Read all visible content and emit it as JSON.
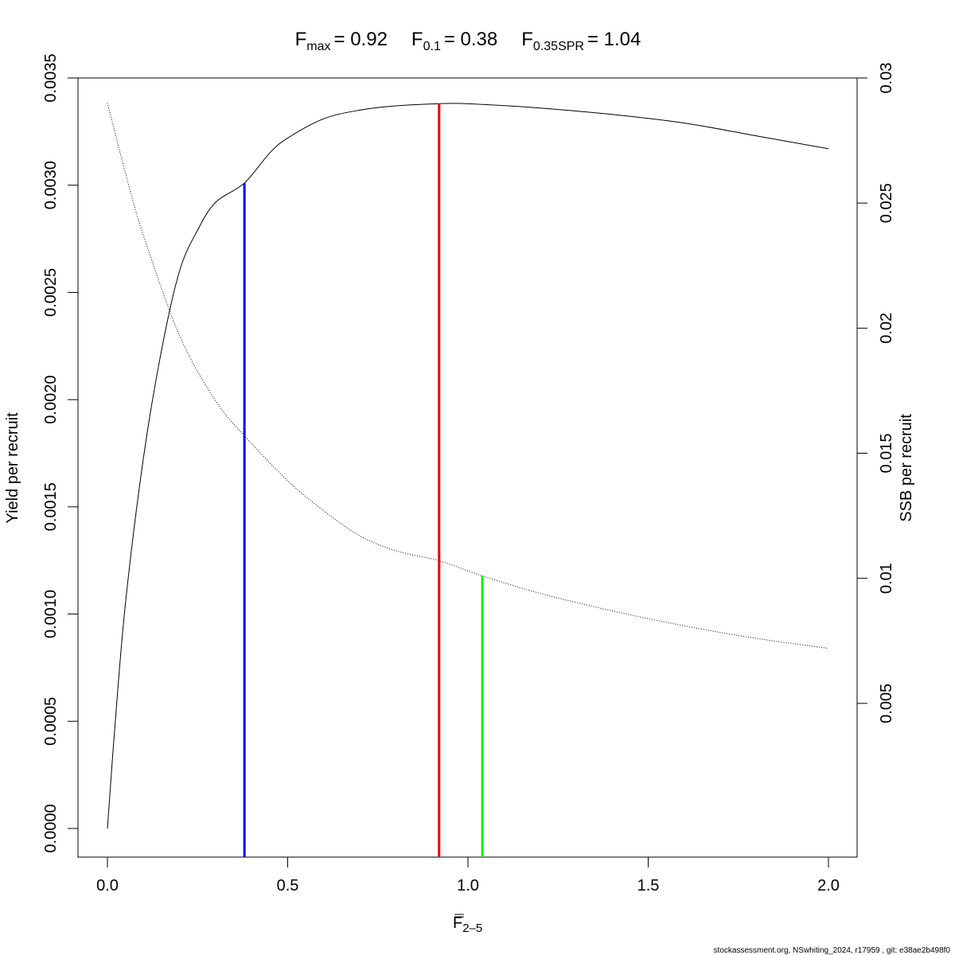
{
  "chart_data": {
    "type": "line",
    "title": {
      "fmax": {
        "base": "F",
        "sub": "max",
        "value": "= 0.92"
      },
      "f01": {
        "base": "F",
        "sub": "0.1",
        "value": "= 0.38"
      },
      "fspr": {
        "base": "F",
        "sub": "0.35SPR",
        "value": "= 1.04"
      }
    },
    "xlabel": {
      "base": "F",
      "sub": "2–5"
    },
    "ylabel_left": "Yield per recruit",
    "ylabel_right": "SSB per recruit",
    "x_ticks": [
      "0.0",
      "0.5",
      "1.0",
      "1.5",
      "2.0"
    ],
    "y_left_ticks": [
      "0.0000",
      "0.0005",
      "0.0010",
      "0.0015",
      "0.0020",
      "0.0025",
      "0.0030",
      "0.0035"
    ],
    "y_right_ticks": [
      "0.005",
      "0.01",
      "0.015",
      "0.02",
      "0.025",
      "0.03"
    ],
    "xlim": [
      0,
      2
    ],
    "ylim_left": [
      0,
      0.0035
    ],
    "ylim_right": [
      0,
      0.03
    ],
    "series": [
      {
        "name": "",
        "axis": "left",
        "style": "solid",
        "x": [
          0,
          0.02,
          0.05,
          0.1,
          0.15,
          0.2,
          0.25,
          0.3,
          0.38,
          0.45,
          0.5,
          0.6,
          0.7,
          0.8,
          0.92,
          1.0,
          1.2,
          1.4,
          1.6,
          1.8,
          2.0
        ],
        "y": [
          0,
          0.00046,
          0.00105,
          0.00173,
          0.00223,
          0.0026,
          0.00279,
          0.00292,
          0.00301,
          0.00315,
          0.00322,
          0.00331,
          0.00335,
          0.00337,
          0.00338,
          0.00338,
          0.00336,
          0.00333,
          0.00329,
          0.00323,
          0.00317
        ]
      },
      {
        "name": "",
        "axis": "right",
        "style": "dotted",
        "x": [
          0,
          0.05,
          0.1,
          0.2,
          0.3,
          0.38,
          0.5,
          0.6,
          0.7,
          0.8,
          0.92,
          1.04,
          1.2,
          1.4,
          1.6,
          1.8,
          2.0
        ],
        "y": [
          0.029,
          0.0262,
          0.0237,
          0.0197,
          0.0171,
          0.0157,
          0.0139,
          0.0127,
          0.0117,
          0.0111,
          0.0107,
          0.0101,
          0.0094,
          0.0087,
          0.0081,
          0.0076,
          0.0072
        ]
      }
    ],
    "reference_lines": [
      {
        "name": "F0.1",
        "x": 0.38,
        "axis": "left",
        "y_top": 0.00301,
        "color": "#0000ee"
      },
      {
        "name": "Fmax",
        "x": 0.92,
        "axis": "left",
        "y_top": 0.00338,
        "color": "#ee0000"
      },
      {
        "name": "F0.35SPR",
        "x": 1.04,
        "axis": "right",
        "y_top": 0.0101,
        "color": "#00ee00"
      }
    ]
  },
  "footer": "stockassessment.org, NSwhiting_2024, r17959 , git: e38ae2b498f0"
}
